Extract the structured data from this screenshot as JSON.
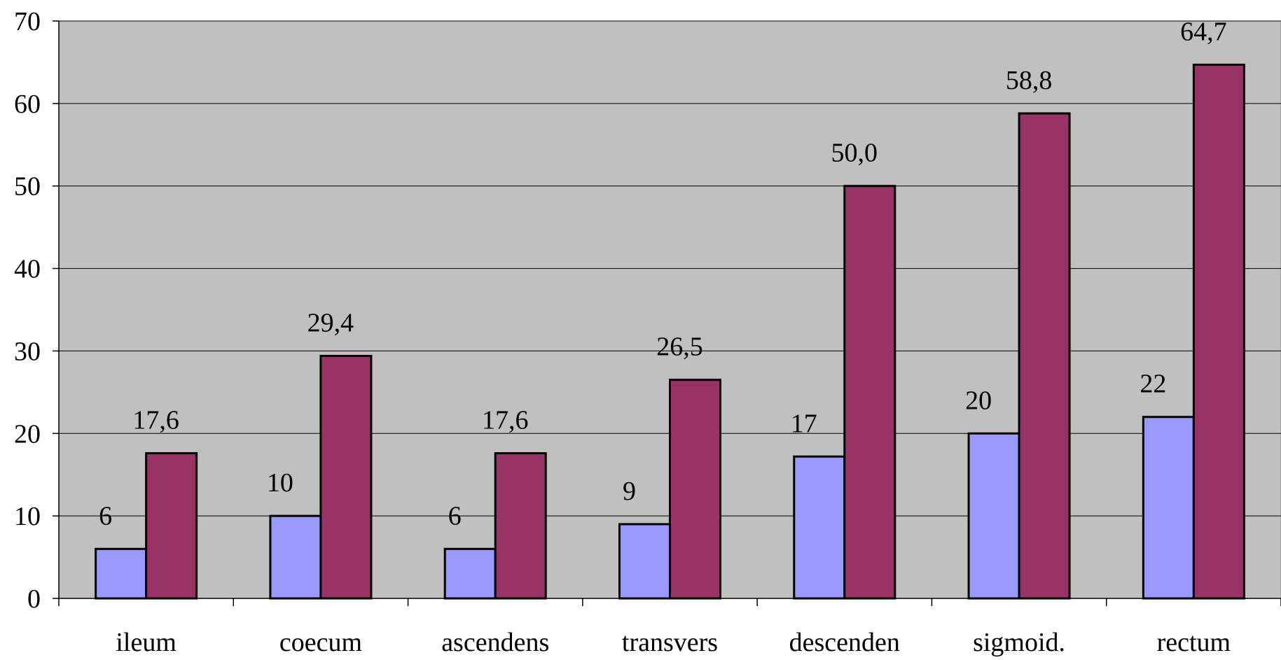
{
  "chart_data": {
    "type": "bar",
    "categories": [
      "ileum",
      "coecum",
      "ascendens",
      "transvers",
      "descenden",
      "sigmoid.",
      "rectum"
    ],
    "series": [
      {
        "values": [
          6,
          10,
          6,
          9,
          17.2,
          20,
          22
        ],
        "labels": [
          "6",
          "10",
          "6",
          "9",
          "17",
          "20",
          "22"
        ],
        "color": "#9999ff"
      },
      {
        "values": [
          17.6,
          29.4,
          17.6,
          26.5,
          50.0,
          58.8,
          64.7
        ],
        "labels": [
          "17,6",
          "29,4",
          "17,6",
          "26,5",
          "50,0",
          "58,8",
          "64,7"
        ],
        "color": "#993366"
      }
    ],
    "title": "",
    "xlabel": "",
    "ylabel": "",
    "ylim": [
      0,
      70
    ],
    "yticks": [
      0,
      10,
      20,
      30,
      40,
      50,
      60,
      70
    ],
    "grid": true,
    "plot_background": "#c0c0c0",
    "legend": "none"
  }
}
